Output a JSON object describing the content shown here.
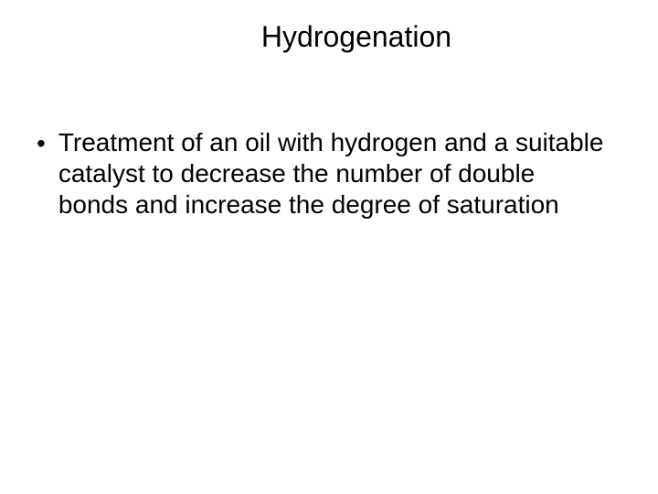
{
  "slide": {
    "title": "Hydrogenation",
    "title_fontsize": 32,
    "bullet_marker": "•",
    "bullets": [
      {
        "text": "Treatment of an oil with hydrogen and a suitable catalyst to decrease the number of double bonds and increase the degree of saturation"
      }
    ],
    "body_fontsize": 28,
    "background_color": "#ffffff",
    "text_color": "#000000",
    "font_family": "Arial"
  }
}
